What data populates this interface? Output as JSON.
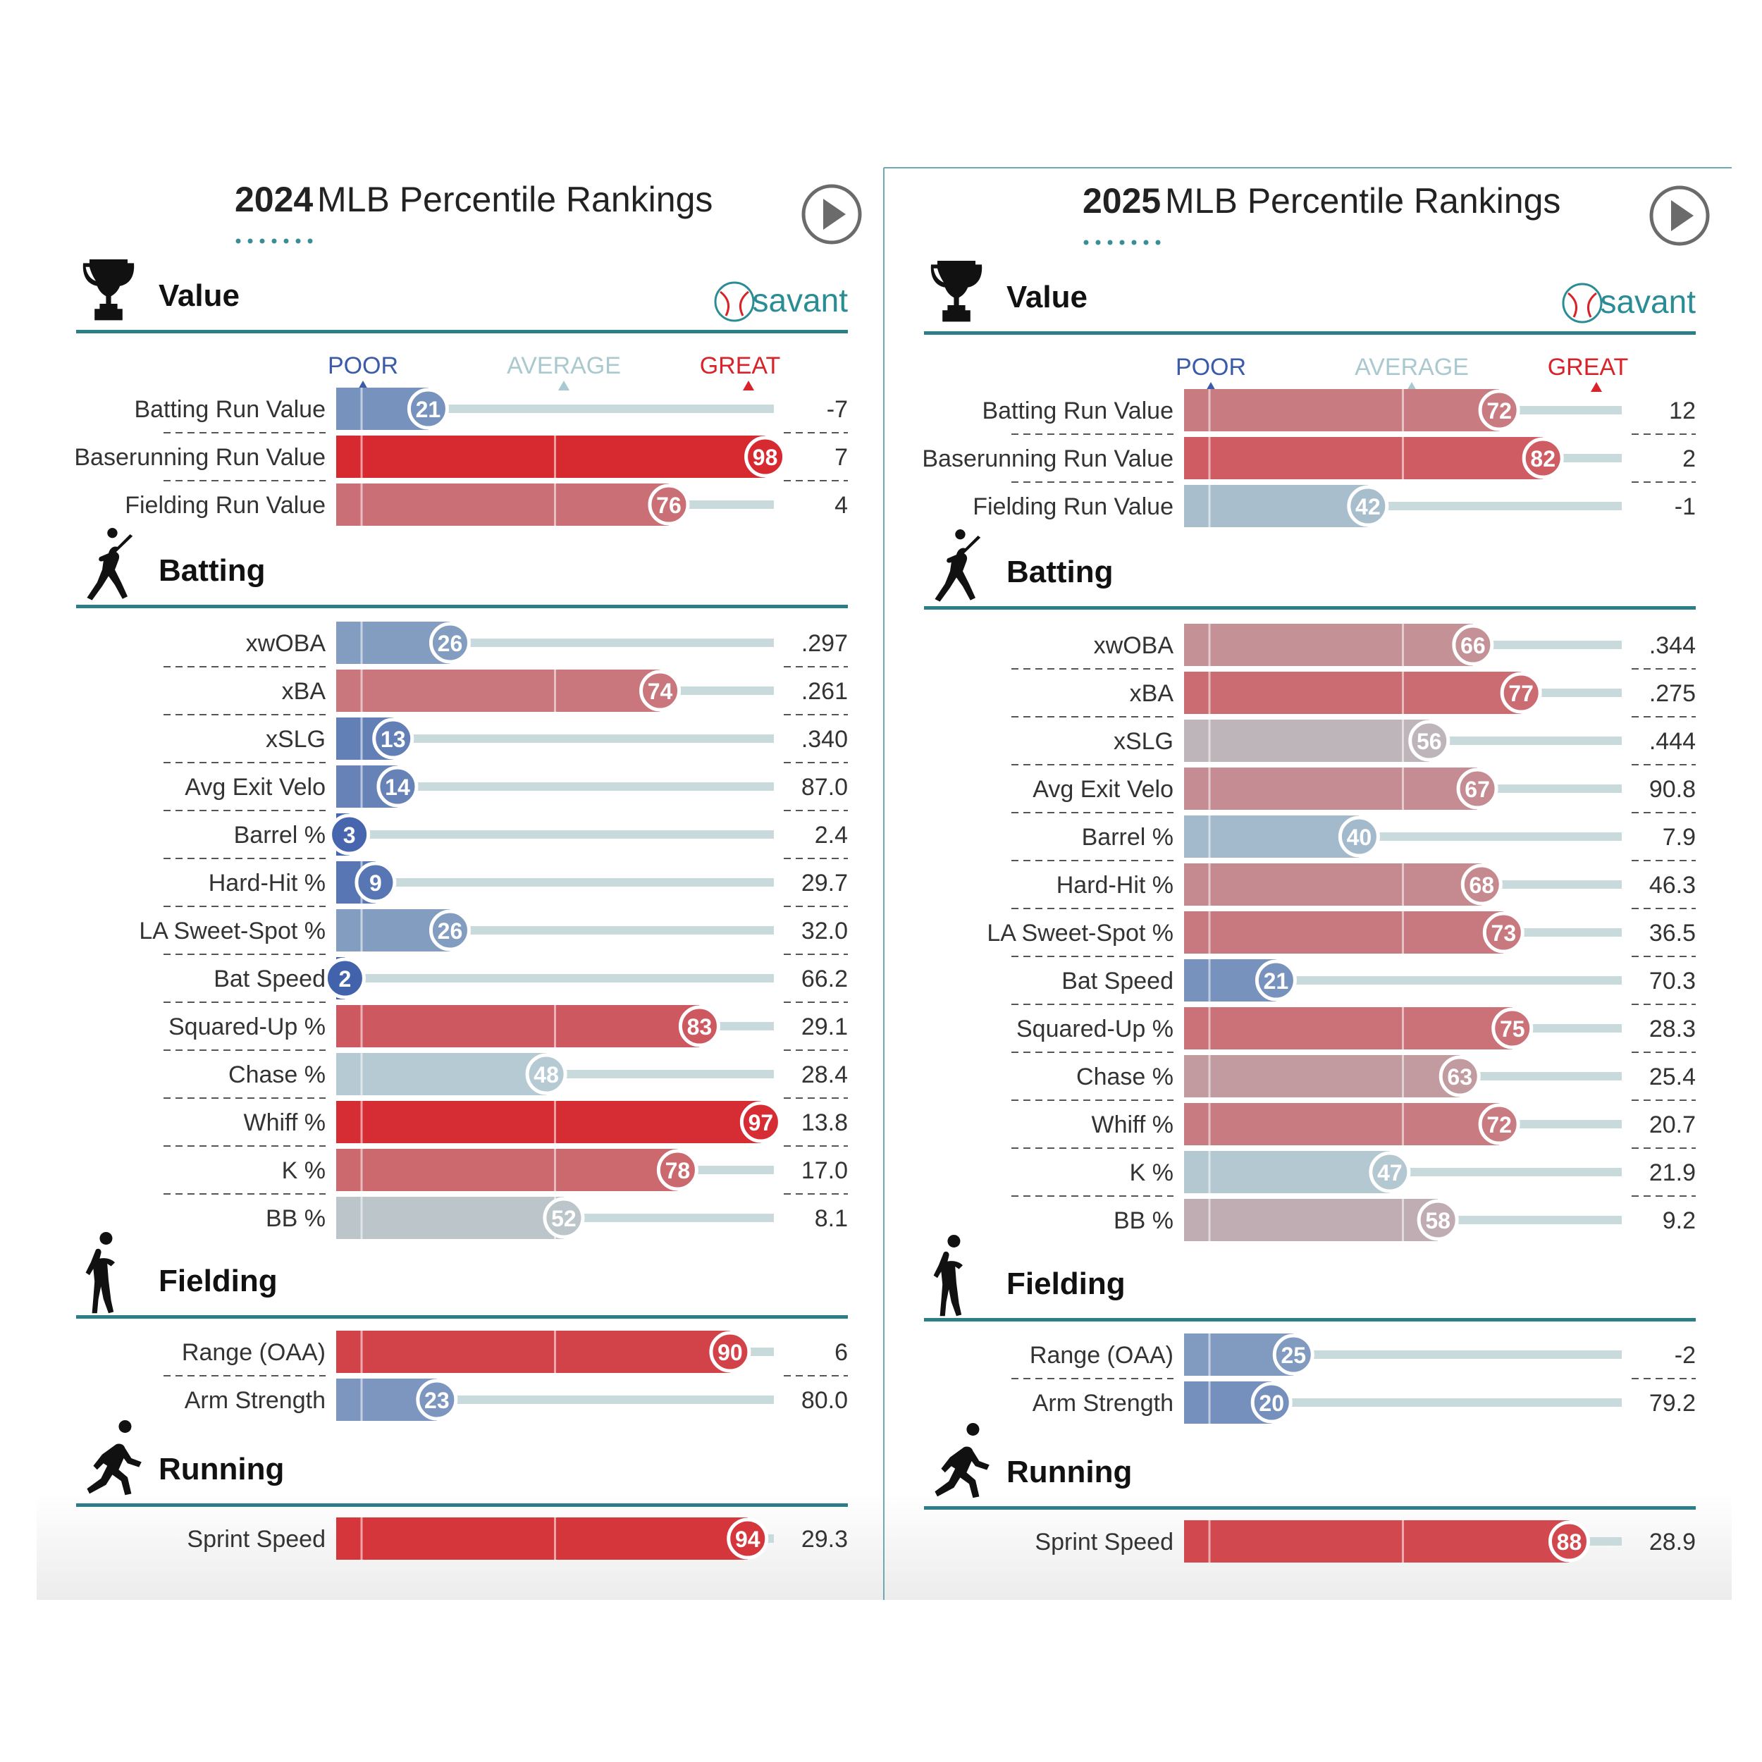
{
  "scale_labels": {
    "poor": "POOR",
    "average": "AVERAGE",
    "great": "GREAT"
  },
  "colors": {
    "poor": "#3b5ba9",
    "average": "#a9c9cf",
    "great": "#d8232a",
    "teal": "#2a7f86",
    "track": "#c9dadd",
    "text": "#333333"
  },
  "brand": "savant",
  "panels": [
    {
      "year": "2024",
      "title": "MLB Percentile Rankings",
      "chart_data": {
        "type": "bar",
        "title": "2024 MLB Percentile Rankings",
        "xlim": [
          0,
          100
        ],
        "sections": [
          {
            "name": "Value",
            "icon": "trophy-icon",
            "metrics": [
              {
                "label": "Batting Run Value",
                "percentile": 21,
                "value": "-7"
              },
              {
                "label": "Baserunning Run Value",
                "percentile": 98,
                "value": "7"
              },
              {
                "label": "Fielding Run Value",
                "percentile": 76,
                "value": "4"
              }
            ]
          },
          {
            "name": "Batting",
            "icon": "batter-icon",
            "metrics": [
              {
                "label": "xwOBA",
                "percentile": 26,
                "value": ".297"
              },
              {
                "label": "xBA",
                "percentile": 74,
                "value": ".261"
              },
              {
                "label": "xSLG",
                "percentile": 13,
                "value": ".340"
              },
              {
                "label": "Avg Exit Velo",
                "percentile": 14,
                "value": "87.0"
              },
              {
                "label": "Barrel %",
                "percentile": 3,
                "value": "2.4"
              },
              {
                "label": "Hard-Hit %",
                "percentile": 9,
                "value": "29.7"
              },
              {
                "label": "LA Sweet-Spot %",
                "percentile": 26,
                "value": "32.0"
              },
              {
                "label": "Bat Speed",
                "percentile": 2,
                "value": "66.2"
              },
              {
                "label": "Squared-Up %",
                "percentile": 83,
                "value": "29.1"
              },
              {
                "label": "Chase %",
                "percentile": 48,
                "value": "28.4"
              },
              {
                "label": "Whiff %",
                "percentile": 97,
                "value": "13.8"
              },
              {
                "label": "K %",
                "percentile": 78,
                "value": "17.0"
              },
              {
                "label": "BB %",
                "percentile": 52,
                "value": "8.1"
              }
            ]
          },
          {
            "name": "Fielding",
            "icon": "fielder-icon",
            "metrics": [
              {
                "label": "Range (OAA)",
                "percentile": 90,
                "value": "6"
              },
              {
                "label": "Arm Strength",
                "percentile": 23,
                "value": "80.0"
              }
            ]
          },
          {
            "name": "Running",
            "icon": "runner-icon",
            "metrics": [
              {
                "label": "Sprint Speed",
                "percentile": 94,
                "value": "29.3"
              }
            ]
          }
        ]
      }
    },
    {
      "year": "2025",
      "title": "MLB Percentile Rankings",
      "chart_data": {
        "type": "bar",
        "title": "2025 MLB Percentile Rankings",
        "xlim": [
          0,
          100
        ],
        "sections": [
          {
            "name": "Value",
            "icon": "trophy-icon",
            "metrics": [
              {
                "label": "Batting Run Value",
                "percentile": 72,
                "value": "12"
              },
              {
                "label": "Baserunning Run Value",
                "percentile": 82,
                "value": "2"
              },
              {
                "label": "Fielding Run Value",
                "percentile": 42,
                "value": "-1"
              }
            ]
          },
          {
            "name": "Batting",
            "icon": "batter-icon",
            "metrics": [
              {
                "label": "xwOBA",
                "percentile": 66,
                "value": ".344"
              },
              {
                "label": "xBA",
                "percentile": 77,
                "value": ".275"
              },
              {
                "label": "xSLG",
                "percentile": 56,
                "value": ".444"
              },
              {
                "label": "Avg Exit Velo",
                "percentile": 67,
                "value": "90.8"
              },
              {
                "label": "Barrel %",
                "percentile": 40,
                "value": "7.9"
              },
              {
                "label": "Hard-Hit %",
                "percentile": 68,
                "value": "46.3"
              },
              {
                "label": "LA Sweet-Spot %",
                "percentile": 73,
                "value": "36.5"
              },
              {
                "label": "Bat Speed",
                "percentile": 21,
                "value": "70.3"
              },
              {
                "label": "Squared-Up %",
                "percentile": 75,
                "value": "28.3"
              },
              {
                "label": "Chase %",
                "percentile": 63,
                "value": "25.4"
              },
              {
                "label": "Whiff %",
                "percentile": 72,
                "value": "20.7"
              },
              {
                "label": "K %",
                "percentile": 47,
                "value": "21.9"
              },
              {
                "label": "BB %",
                "percentile": 58,
                "value": "9.2"
              }
            ]
          },
          {
            "name": "Fielding",
            "icon": "fielder-icon",
            "metrics": [
              {
                "label": "Range (OAA)",
                "percentile": 25,
                "value": "-2"
              },
              {
                "label": "Arm Strength",
                "percentile": 20,
                "value": "79.2"
              }
            ]
          },
          {
            "name": "Running",
            "icon": "runner-icon",
            "metrics": [
              {
                "label": "Sprint Speed",
                "percentile": 88,
                "value": "28.9"
              }
            ]
          }
        ]
      }
    }
  ]
}
